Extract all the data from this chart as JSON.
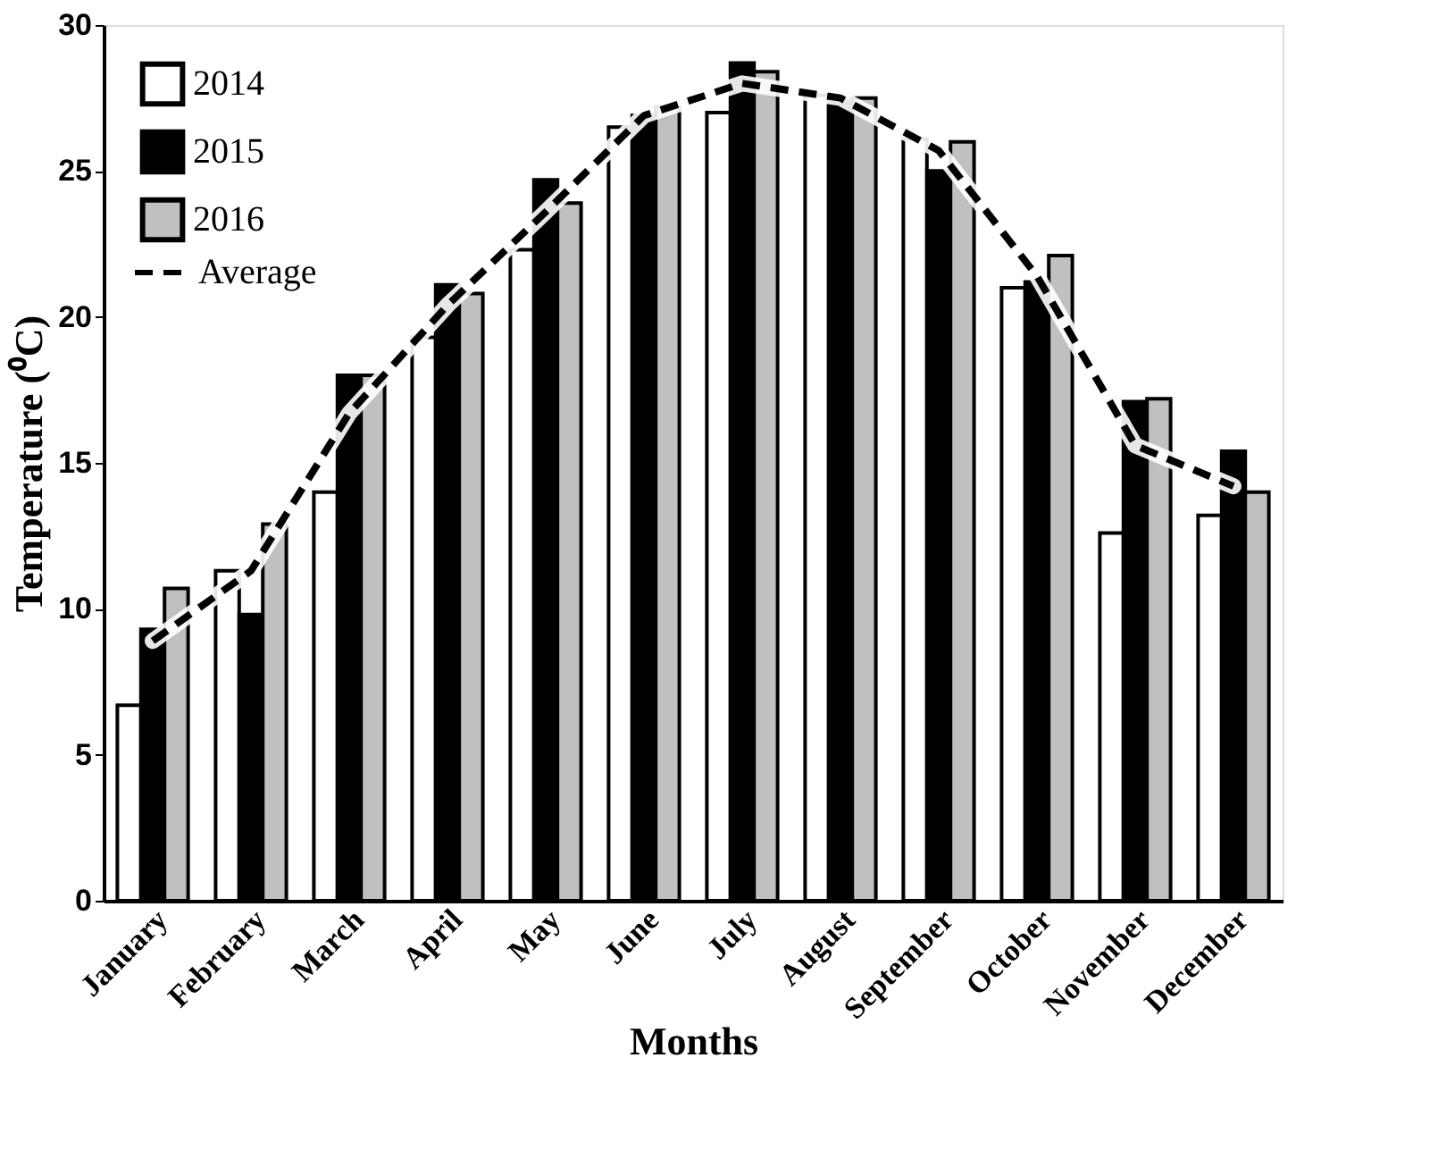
{
  "chart_data": {
    "type": "bar",
    "xlabel": "Months",
    "ylabel": "Temperature (⁰C)",
    "categories": [
      "January",
      "February",
      "March",
      "April",
      "May",
      "June",
      "July",
      "August",
      "September",
      "October",
      "November",
      "December"
    ],
    "series": [
      {
        "name": "2014",
        "color": "#ffffff",
        "values": [
          6.7,
          11.3,
          14.0,
          19.3,
          22.3,
          26.5,
          27.0,
          27.6,
          26.1,
          21.0,
          12.6,
          13.2
        ]
      },
      {
        "name": "2015",
        "color": "#000000",
        "values": [
          9.3,
          9.8,
          18.0,
          21.1,
          24.7,
          26.9,
          28.7,
          27.4,
          25.0,
          21.2,
          17.1,
          15.4
        ]
      },
      {
        "name": "2016",
        "color": "#c0c0c0",
        "values": [
          10.7,
          12.9,
          18.0,
          20.8,
          23.9,
          27.2,
          28.4,
          27.5,
          26.0,
          22.1,
          17.2,
          14.0
        ]
      },
      {
        "name": "Average",
        "type": "line",
        "color": "#000000",
        "line_style": "dashed",
        "marker": "none",
        "values": [
          8.9,
          11.3,
          16.7,
          20.4,
          23.6,
          26.9,
          28.0,
          27.5,
          25.7,
          21.4,
          15.6,
          14.2
        ]
      }
    ],
    "ylim": [
      0,
      30
    ],
    "yticks": [
      0,
      5,
      10,
      15,
      20,
      25,
      30
    ],
    "grid": false,
    "legend": "top left"
  }
}
